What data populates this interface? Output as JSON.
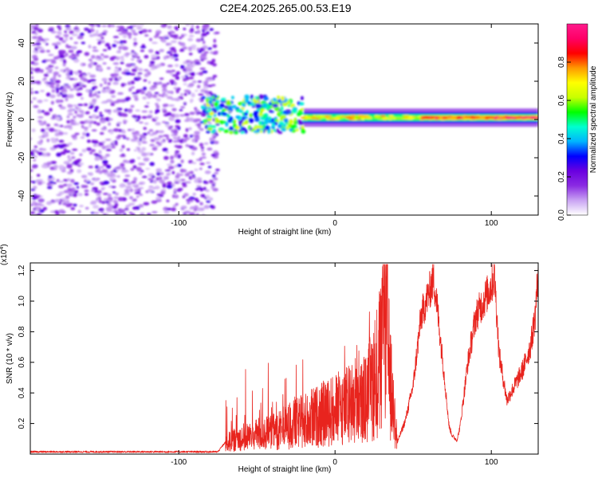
{
  "title": "C2E4.2025.265.00.53.E19",
  "colors": {
    "snr_line": "#e8241e",
    "axis": "#000000",
    "background": "#ffffff"
  },
  "chart_data": [
    {
      "type": "heatmap",
      "title": "C2E4.2025.265.00.53.E19",
      "xlabel": "Height of straight line (km)",
      "ylabel": "Frequency (Hz)",
      "xlim": [
        -195,
        130
      ],
      "ylim": [
        -50,
        50
      ],
      "xticks": [
        -100,
        0,
        100
      ],
      "yticks": [
        -40,
        -20,
        0,
        20,
        40
      ],
      "colorbar": {
        "label": "Normalized spectral amplitude",
        "range": [
          0,
          1
        ],
        "ticks": [
          0.0,
          0.2,
          0.4,
          0.6,
          0.8
        ],
        "tick_labels": [
          "0.0",
          "0.2",
          "0.4",
          "0.6",
          "0.8"
        ],
        "colormap": [
          "#ffffff",
          "#c9a3f3",
          "#8a2be2",
          "#6a00e0",
          "#0000ff",
          "#00b4ff",
          "#00ffd0",
          "#00ff00",
          "#c8ff00",
          "#ffff00",
          "#ff9900",
          "#ff0000",
          "#ff0066",
          "#ff1a8c"
        ]
      },
      "regions": [
        {
          "name": "noise",
          "x_range": [
            -195,
            -75
          ],
          "f_range": [
            -50,
            50
          ],
          "amplitude": 0.2
        },
        {
          "name": "transition",
          "x_range": [
            -85,
            -20
          ],
          "f_range": [
            -7,
            12
          ],
          "amplitude": 0.45
        },
        {
          "name": "tone",
          "x_range": [
            -20,
            130
          ],
          "f_center": 1,
          "f_halfwidth": 3,
          "amplitude": 0.75
        },
        {
          "name": "tone-peak",
          "x_range": [
            55,
            130
          ],
          "f_center": 1,
          "f_halfwidth": 1,
          "amplitude": 0.95
        }
      ]
    },
    {
      "type": "line",
      "xlabel": "Height of straight line (km)",
      "ylabel": "SNR (10 * v/v)",
      "y_multiplier_label": "(x10",
      "y_multiplier_exp": "4",
      "xlim": [
        -195,
        130
      ],
      "ylim": [
        0,
        1.25
      ],
      "xticks": [
        -100,
        0,
        100
      ],
      "yticks": [
        0.2,
        0.4,
        0.6,
        0.8,
        1.0,
        1.2
      ],
      "ytick_labels": [
        "0.2",
        "0.4",
        "0.6",
        "0.8",
        "1.0",
        "1.2"
      ],
      "series": [
        {
          "name": "SNR",
          "anchors_x": [
            -195,
            -75,
            -70,
            -60,
            -50,
            -40,
            -30,
            -20,
            -10,
            0,
            10,
            20,
            30,
            32,
            35,
            40,
            45,
            50,
            55,
            60,
            63,
            65,
            70,
            73,
            75,
            78,
            80,
            85,
            90,
            95,
            100,
            102,
            105,
            110,
            115,
            120,
            125,
            128,
            130
          ],
          "anchors_y": [
            0.015,
            0.015,
            0.08,
            0.12,
            0.14,
            0.16,
            0.2,
            0.24,
            0.28,
            0.32,
            0.36,
            0.4,
            0.7,
            1.1,
            0.55,
            0.08,
            0.22,
            0.45,
            0.9,
            1.05,
            1.15,
            1.0,
            0.5,
            0.18,
            0.12,
            0.09,
            0.18,
            0.6,
            0.9,
            1.0,
            1.1,
            1.18,
            0.65,
            0.35,
            0.45,
            0.55,
            0.7,
            0.9,
            1.2
          ],
          "noise_x_range": [
            -70,
            40
          ]
        }
      ]
    }
  ]
}
